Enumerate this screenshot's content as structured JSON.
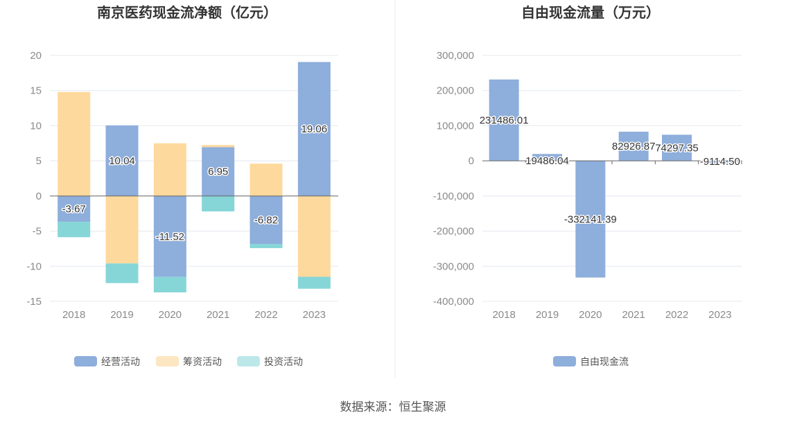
{
  "source": "数据来源：恒生聚源",
  "chart_data": [
    {
      "type": "bar",
      "stacked": true,
      "title": "南京医药现金流净额（亿元）",
      "categories": [
        "2018",
        "2019",
        "2020",
        "2021",
        "2022",
        "2023"
      ],
      "ylim": [
        -15,
        20
      ],
      "yticks": [
        20,
        15,
        10,
        5,
        0,
        -5,
        -10,
        -15
      ],
      "grid": true,
      "legend_position": "bottom",
      "series": [
        {
          "name": "经营活动",
          "color": "#8eaedb",
          "values": [
            -3.67,
            10.04,
            -11.52,
            6.95,
            -6.82,
            19.06
          ],
          "show_labels": true
        },
        {
          "name": "筹资活动",
          "color": "#fed99d",
          "values": [
            14.8,
            -9.6,
            7.5,
            0.3,
            4.6,
            -11.5
          ],
          "show_labels": false
        },
        {
          "name": "投资活动",
          "color": "#86d6d8",
          "values": [
            -2.2,
            -2.8,
            -2.2,
            -2.2,
            -0.6,
            -1.7
          ],
          "show_labels": false
        }
      ],
      "legend_colors": [
        "#8eaedb",
        "#fde6c2",
        "#bde8ea"
      ]
    },
    {
      "type": "bar",
      "title": "自由现金流量（万元）",
      "categories": [
        "2018",
        "2019",
        "2020",
        "2021",
        "2022",
        "2023"
      ],
      "ylim": [
        -400000,
        300000
      ],
      "yticks": [
        "300,000",
        "200,000",
        "100,000",
        "0",
        "-100,000",
        "-200,000",
        "-300,000",
        "-400,000"
      ],
      "grid": true,
      "legend_position": "bottom",
      "series": [
        {
          "name": "自由现金流",
          "color": "#8eaedb",
          "values": [
            231486.01,
            19486.04,
            -332141.39,
            82926.87,
            74297.35,
            -9114.5
          ],
          "labels": [
            "231486.01",
            "19486.04",
            "-332141.39",
            "82926.87",
            "74297.35",
            "-9114.50"
          ]
        }
      ]
    }
  ]
}
